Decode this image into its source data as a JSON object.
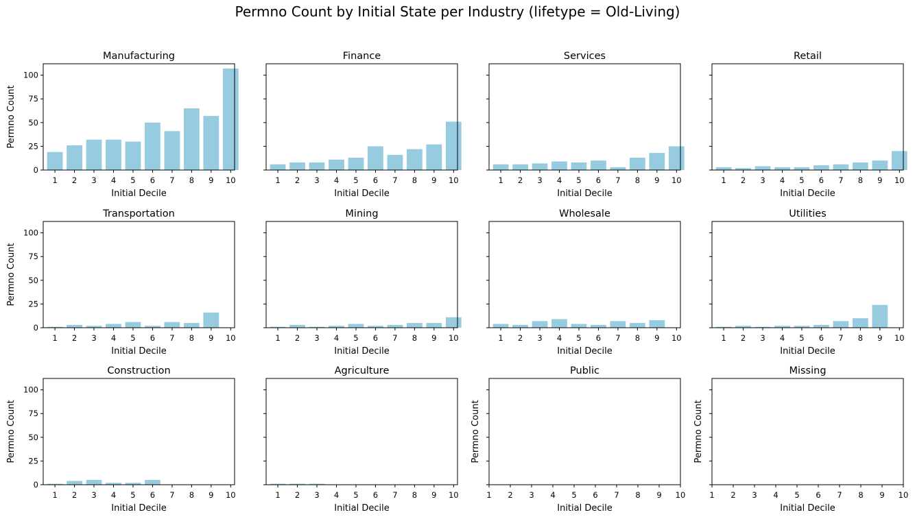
{
  "figure": {
    "title": "Permno Count by Initial State per Industry (lifetype = Old-Living)"
  },
  "colors": {
    "bar": "#96cbe0",
    "axis": "#000000"
  },
  "chart_data": [
    {
      "type": "bar",
      "title": "Manufacturing",
      "xlabel": "Initial Decile",
      "ylabel": "Permno Count",
      "categories": [
        "1",
        "2",
        "3",
        "4",
        "5",
        "6",
        "7",
        "8",
        "9",
        "10"
      ],
      "values": [
        19,
        26,
        32,
        32,
        30,
        50,
        41,
        65,
        57,
        107
      ],
      "ylim": [
        0,
        112
      ],
      "yticks": [
        0,
        25,
        50,
        75,
        100
      ],
      "show_ytick_labels": true
    },
    {
      "type": "bar",
      "title": "Finance",
      "xlabel": "Initial Decile",
      "ylabel": "",
      "categories": [
        "1",
        "2",
        "3",
        "4",
        "5",
        "6",
        "7",
        "8",
        "9",
        "10"
      ],
      "values": [
        6,
        8,
        8,
        11,
        13,
        25,
        16,
        22,
        27,
        51
      ],
      "ylim": [
        0,
        112
      ],
      "yticks": [
        0,
        25,
        50,
        75,
        100
      ],
      "show_ytick_labels": false
    },
    {
      "type": "bar",
      "title": "Services",
      "xlabel": "Initial Decile",
      "ylabel": "",
      "categories": [
        "1",
        "2",
        "3",
        "4",
        "5",
        "6",
        "7",
        "8",
        "9",
        "10"
      ],
      "values": [
        6,
        6,
        7,
        9,
        8,
        10,
        3,
        13,
        18,
        25
      ],
      "ylim": [
        0,
        112
      ],
      "yticks": [
        0,
        25,
        50,
        75,
        100
      ],
      "show_ytick_labels": false
    },
    {
      "type": "bar",
      "title": "Retail",
      "xlabel": "Initial Decile",
      "ylabel": "",
      "categories": [
        "1",
        "2",
        "3",
        "4",
        "5",
        "6",
        "7",
        "8",
        "9",
        "10"
      ],
      "values": [
        3,
        2,
        4,
        3,
        3,
        5,
        6,
        8,
        10,
        20
      ],
      "ylim": [
        0,
        112
      ],
      "yticks": [
        0,
        25,
        50,
        75,
        100
      ],
      "show_ytick_labels": false
    },
    {
      "type": "bar",
      "title": "Transportation",
      "xlabel": "Initial Decile",
      "ylabel": "Permno Count",
      "categories": [
        "1",
        "2",
        "3",
        "4",
        "5",
        "6",
        "7",
        "8",
        "9",
        "10"
      ],
      "values": [
        1,
        3,
        2,
        4,
        6,
        2,
        6,
        5,
        16,
        null
      ],
      "ylim": [
        0,
        112
      ],
      "yticks": [
        0,
        25,
        50,
        75,
        100
      ],
      "show_ytick_labels": true
    },
    {
      "type": "bar",
      "title": "Mining",
      "xlabel": "Initial Decile",
      "ylabel": "",
      "categories": [
        "1",
        "2",
        "3",
        "4",
        "5",
        "6",
        "7",
        "8",
        "9",
        "10"
      ],
      "values": [
        1,
        3,
        1,
        2,
        4,
        2,
        3,
        5,
        5,
        11
      ],
      "ylim": [
        0,
        112
      ],
      "yticks": [
        0,
        25,
        50,
        75,
        100
      ],
      "show_ytick_labels": false
    },
    {
      "type": "bar",
      "title": "Wholesale",
      "xlabel": "Initial Decile",
      "ylabel": "",
      "categories": [
        "1",
        "2",
        "3",
        "4",
        "5",
        "6",
        "7",
        "8",
        "9",
        "10"
      ],
      "values": [
        4,
        3,
        7,
        9,
        4,
        3,
        7,
        5,
        8,
        null
      ],
      "ylim": [
        0,
        112
      ],
      "yticks": [
        0,
        25,
        50,
        75,
        100
      ],
      "show_ytick_labels": false
    },
    {
      "type": "bar",
      "title": "Utilities",
      "xlabel": "Initial Decile",
      "ylabel": "",
      "categories": [
        "1",
        "2",
        "3",
        "4",
        "5",
        "6",
        "7",
        "8",
        "9",
        "10"
      ],
      "values": [
        1,
        2,
        1,
        2,
        2,
        3,
        7,
        10,
        24,
        null
      ],
      "ylim": [
        0,
        112
      ],
      "yticks": [
        0,
        25,
        50,
        75,
        100
      ],
      "show_ytick_labels": false
    },
    {
      "type": "bar",
      "title": "Construction",
      "xlabel": "Initial Decile",
      "ylabel": "Permno Count",
      "categories": [
        "1",
        "2",
        "3",
        "4",
        "5",
        "6",
        "7",
        "8",
        "9",
        "10"
      ],
      "values": [
        1,
        4,
        5,
        2,
        2,
        5,
        null,
        null,
        null,
        null
      ],
      "ylim": [
        0,
        112
      ],
      "yticks": [
        0,
        25,
        50,
        75,
        100
      ],
      "show_ytick_labels": true
    },
    {
      "type": "bar",
      "title": "Agriculture",
      "xlabel": "Initial Decile",
      "ylabel": "",
      "categories": [
        "1",
        "2",
        "3",
        "4",
        "5",
        "6",
        "7",
        "8",
        "9",
        "10"
      ],
      "values": [
        1,
        1,
        1,
        null,
        null,
        null,
        null,
        null,
        null,
        null
      ],
      "ylim": [
        0,
        112
      ],
      "yticks": [
        0,
        25,
        50,
        75,
        100
      ],
      "show_ytick_labels": false
    },
    {
      "type": "bar",
      "title": "Public",
      "xlabel": "Initial Decile",
      "ylabel": "Permno Count",
      "categories": [
        "1",
        "2",
        "3",
        "4",
        "5",
        "6",
        "7",
        "8",
        "9",
        "10"
      ],
      "values": [
        null,
        null,
        null,
        null,
        null,
        null,
        null,
        null,
        null,
        null
      ],
      "ylim": [
        0,
        112
      ],
      "yticks": [
        0,
        25,
        50,
        75,
        100
      ],
      "show_ytick_labels": false
    },
    {
      "type": "bar",
      "title": "Missing",
      "xlabel": "Initial Decile",
      "ylabel": "Permno Count",
      "categories": [
        "1",
        "2",
        "3",
        "4",
        "5",
        "6",
        "7",
        "8",
        "9",
        "10"
      ],
      "values": [
        null,
        null,
        null,
        null,
        null,
        null,
        null,
        null,
        null,
        null
      ],
      "ylim": [
        0,
        112
      ],
      "yticks": [
        0,
        25,
        50,
        75,
        100
      ],
      "show_ytick_labels": false
    }
  ]
}
